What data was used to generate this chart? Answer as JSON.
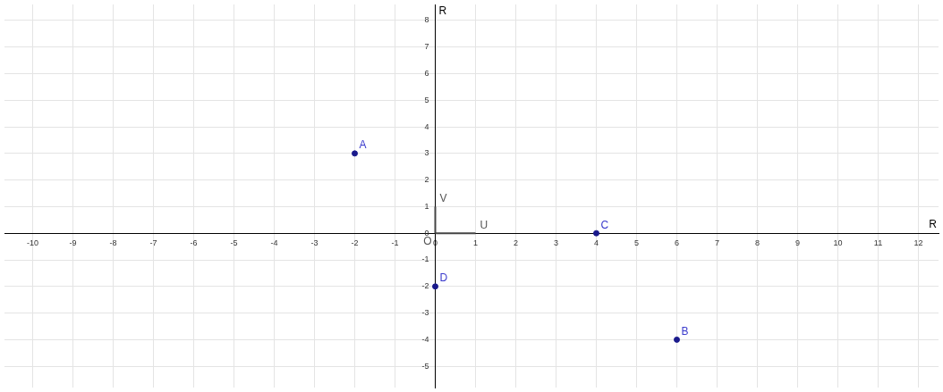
{
  "chart_data": {
    "type": "scatter",
    "xlabel": "R",
    "ylabel": "R",
    "xlim": [
      -10.7,
      12.5
    ],
    "ylim": [
      -5.8,
      8.6
    ],
    "xticks": [
      -10,
      -9,
      -8,
      -7,
      -6,
      -5,
      -4,
      -3,
      -2,
      -1,
      0,
      1,
      2,
      3,
      4,
      5,
      6,
      7,
      8,
      9,
      10,
      11,
      12
    ],
    "yticks": [
      -5,
      -4,
      -3,
      -2,
      -1,
      0,
      1,
      2,
      3,
      4,
      5,
      6,
      7,
      8
    ],
    "grid": true,
    "marker": "circle",
    "legend": false,
    "series": [
      {
        "name": "A",
        "color": "#1a1a8c",
        "x": [
          -2
        ],
        "values": [
          3
        ]
      },
      {
        "name": "B",
        "color": "#1a1a8c",
        "x": [
          6
        ],
        "values": [
          -4
        ]
      },
      {
        "name": "C",
        "color": "#1a1a8c",
        "x": [
          4
        ],
        "values": [
          0
        ]
      },
      {
        "name": "D",
        "color": "#1a1a8c",
        "x": [
          0
        ],
        "values": [
          -2
        ]
      },
      {
        "name": "U",
        "type": "line",
        "marker": "none",
        "color": "#444444",
        "x": [
          0,
          1
        ],
        "values": [
          0,
          0
        ]
      },
      {
        "name": "V",
        "type": "line",
        "marker": "none",
        "color": "#444444",
        "x": [
          0,
          0
        ],
        "values": [
          0,
          1
        ]
      }
    ],
    "annotations": [
      {
        "text": "O",
        "x": 0,
        "y": 0
      }
    ]
  }
}
